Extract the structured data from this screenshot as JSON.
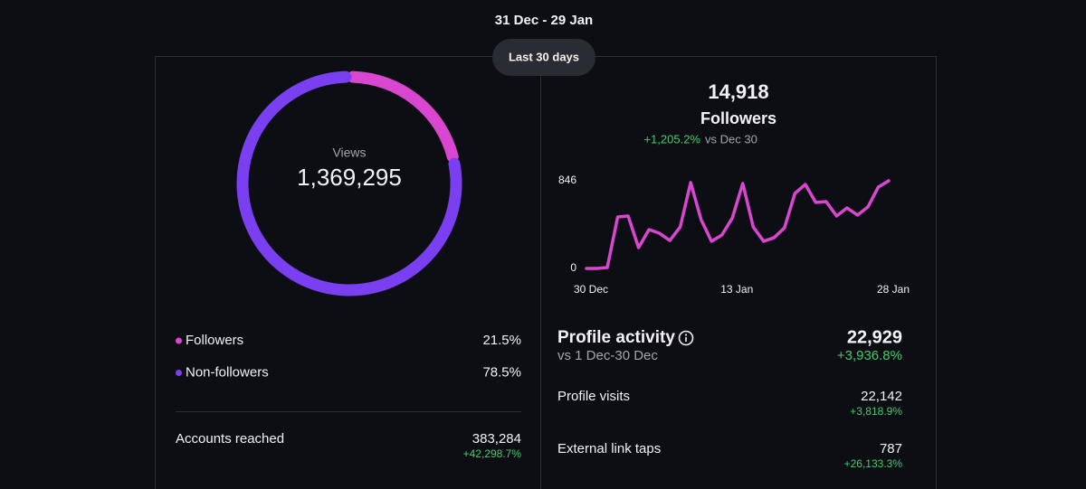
{
  "header": {
    "date_range": "31 Dec - 29 Jan",
    "period_button": "Last 30 days"
  },
  "chart_data": [
    {
      "type": "donut",
      "center_label": "Views",
      "center_value": "1,369,295",
      "categories": [
        "Followers",
        "Non-followers"
      ],
      "values": [
        21.5,
        78.5
      ],
      "value_labels": [
        "21.5%",
        "78.5%"
      ],
      "colors": [
        "#d946d0",
        "#7b3ff2"
      ]
    },
    {
      "type": "line",
      "categories": [
        "30 Dec",
        null,
        null,
        null,
        null,
        null,
        null,
        null,
        null,
        null,
        null,
        null,
        null,
        null,
        "13 Jan",
        null,
        null,
        null,
        null,
        null,
        null,
        null,
        null,
        null,
        null,
        null,
        null,
        null,
        null,
        "28 Jan"
      ],
      "values": [
        0,
        0,
        9,
        497,
        506,
        201,
        375,
        340,
        270,
        401,
        829,
        471,
        262,
        323,
        488,
        820,
        401,
        262,
        297,
        392,
        724,
        811,
        637,
        645,
        506,
        584,
        515,
        593,
        785,
        846
      ],
      "color": "#d946d0",
      "ylim": [
        0,
        846
      ],
      "yticks": [
        0,
        846
      ],
      "grid": false
    }
  ],
  "accounts_reached": {
    "label": "Accounts reached",
    "value": "383,284",
    "change": "+42,298.7%"
  },
  "followers_summary": {
    "count": "14,918",
    "label": "Followers",
    "change": "+1,205.2%",
    "comparison": "vs Dec 30"
  },
  "profile_activity": {
    "title": "Profile activity",
    "subtitle": "vs 1 Dec-30 Dec",
    "total": "22,929",
    "change": "+3,936.8%",
    "rows": [
      {
        "label": "Profile visits",
        "value": "22,142",
        "change": "+3,818.9%"
      },
      {
        "label": "External link taps",
        "value": "787",
        "change": "+26,133.3%"
      }
    ]
  }
}
